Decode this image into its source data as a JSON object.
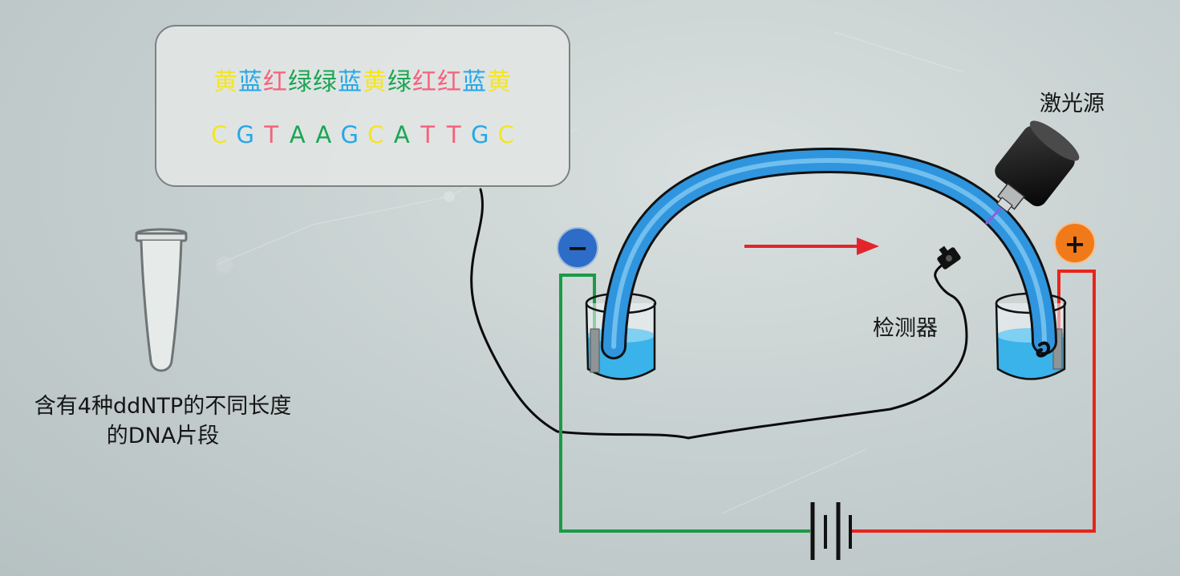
{
  "callout": {
    "color_row": [
      {
        "text": "黄",
        "color": "#f5e522"
      },
      {
        "text": "蓝",
        "color": "#25a8e6"
      },
      {
        "text": "红",
        "color": "#f5627c"
      },
      {
        "text": "绿",
        "color": "#1ca553"
      },
      {
        "text": "绿",
        "color": "#1ca553"
      },
      {
        "text": "蓝",
        "color": "#25a8e6"
      },
      {
        "text": "黄",
        "color": "#f5e522"
      },
      {
        "text": "绿",
        "color": "#1ca553"
      },
      {
        "text": "红",
        "color": "#f5627c"
      },
      {
        "text": "红",
        "color": "#f5627c"
      },
      {
        "text": "蓝",
        "color": "#25a8e6"
      },
      {
        "text": "黄",
        "color": "#f5e522"
      }
    ],
    "base_row": [
      {
        "text": "C",
        "color": "#f5e522"
      },
      {
        "text": "G",
        "color": "#25a8e6"
      },
      {
        "text": "T",
        "color": "#f5627c"
      },
      {
        "text": "A",
        "color": "#1ca553"
      },
      {
        "text": "A",
        "color": "#1ca553"
      },
      {
        "text": "G",
        "color": "#25a8e6"
      },
      {
        "text": "C",
        "color": "#f5e522"
      },
      {
        "text": "A",
        "color": "#1ca553"
      },
      {
        "text": "T",
        "color": "#f5627c"
      },
      {
        "text": "T",
        "color": "#f5627c"
      },
      {
        "text": "G",
        "color": "#25a8e6"
      },
      {
        "text": "C",
        "color": "#f5e522"
      }
    ]
  },
  "tube_caption": {
    "line1": "含有4种ddNTP的不同长度",
    "line2": "的DNA片段"
  },
  "labels": {
    "laser": "激光源",
    "detector": "检测器",
    "negative": "−",
    "positive": "+"
  },
  "colors": {
    "capillary": "#2f95de",
    "buffer": "#3ab2ea",
    "negative_badge": "#2d6dc7",
    "positive_badge": "#f07a1a",
    "negative_wire": "#1b9a48",
    "positive_wire": "#e8241b",
    "flow_arrow": "#e3242b"
  }
}
